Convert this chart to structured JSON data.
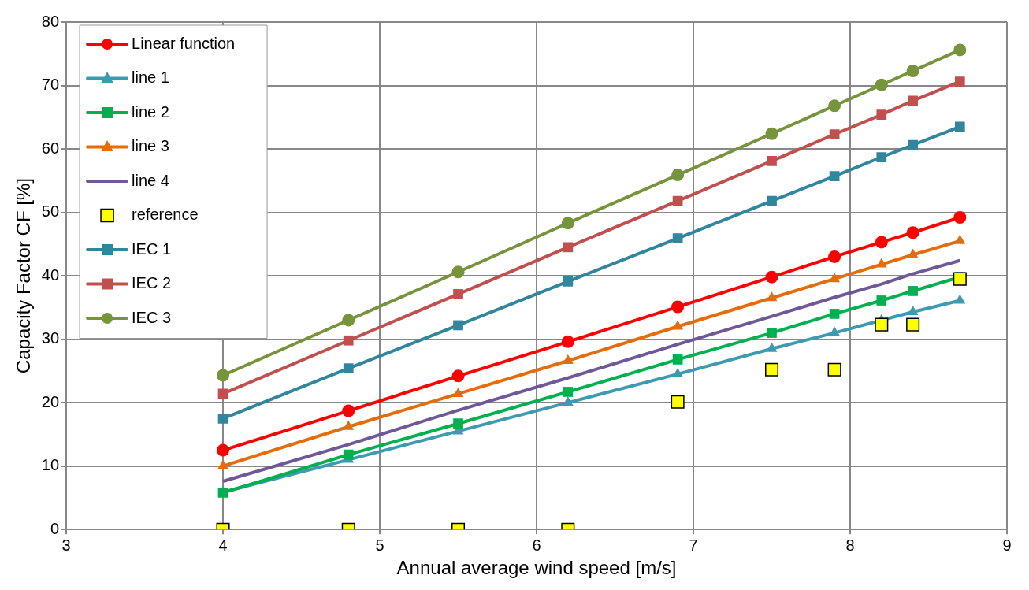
{
  "chart_data": {
    "type": "line",
    "xlabel": "Annual average wind speed [m/s]",
    "ylabel": "Capacity Factor CF [%]",
    "x": [
      4,
      4.8,
      5.5,
      6.2,
      6.9,
      7.5,
      7.9,
      8.2,
      8.4,
      8.7
    ],
    "xlim": [
      3,
      9
    ],
    "xticks": [
      3,
      4,
      5,
      6,
      7,
      8,
      9
    ],
    "ylim": [
      0,
      80
    ],
    "yticks": [
      0,
      10,
      20,
      30,
      40,
      50,
      60,
      70,
      80
    ],
    "grid": true,
    "legend": "top left",
    "line_style": "solid",
    "series": [
      {
        "name": "Linear function",
        "color": "#ff0000",
        "marker": "circle",
        "values": [
          12.5,
          18.7,
          24.2,
          29.6,
          35.1,
          39.8,
          43.0,
          45.3,
          46.8,
          49.2
        ]
      },
      {
        "name": "line 1",
        "color": "#3e9ab0",
        "marker": "triangle",
        "values": [
          5.9,
          11.0,
          15.5,
          20.0,
          24.5,
          28.5,
          31.0,
          33.0,
          34.3,
          36.1
        ]
      },
      {
        "name": "line 2",
        "color": "#00b050",
        "marker": "square",
        "values": [
          5.8,
          11.8,
          16.7,
          21.7,
          26.8,
          31.0,
          34.0,
          36.1,
          37.6,
          39.8
        ]
      },
      {
        "name": "line 3",
        "color": "#e46c0a",
        "marker": "triangle",
        "values": [
          10.0,
          16.2,
          21.4,
          26.6,
          32.0,
          36.5,
          39.5,
          41.8,
          43.3,
          45.5
        ]
      },
      {
        "name": "line 4",
        "color": "#6f5897",
        "marker": "none",
        "values": [
          7.6,
          13.4,
          18.8,
          23.9,
          29.2,
          33.6,
          36.6,
          38.7,
          40.3,
          42.4
        ]
      },
      {
        "name": "reference",
        "type": "scatter",
        "color": "#ffff00",
        "marker": "square",
        "values": [
          0,
          0,
          0,
          0,
          20.1,
          25.2,
          25.2,
          32.3,
          32.3,
          39.5
        ]
      },
      {
        "name": "IEC 1",
        "color": "#31859c",
        "marker": "square",
        "values": [
          17.5,
          25.4,
          32.2,
          39.1,
          45.9,
          51.8,
          55.7,
          58.7,
          60.6,
          63.5
        ]
      },
      {
        "name": "IEC 2",
        "color": "#c0504d",
        "marker": "square",
        "values": [
          21.4,
          29.8,
          37.1,
          44.5,
          51.8,
          58.1,
          62.3,
          65.4,
          67.6,
          70.6
        ]
      },
      {
        "name": "IEC 3",
        "color": "#77933c",
        "marker": "circle",
        "values": [
          24.3,
          33.0,
          40.6,
          48.3,
          55.9,
          62.4,
          66.8,
          70.1,
          72.3,
          75.6
        ]
      }
    ]
  }
}
